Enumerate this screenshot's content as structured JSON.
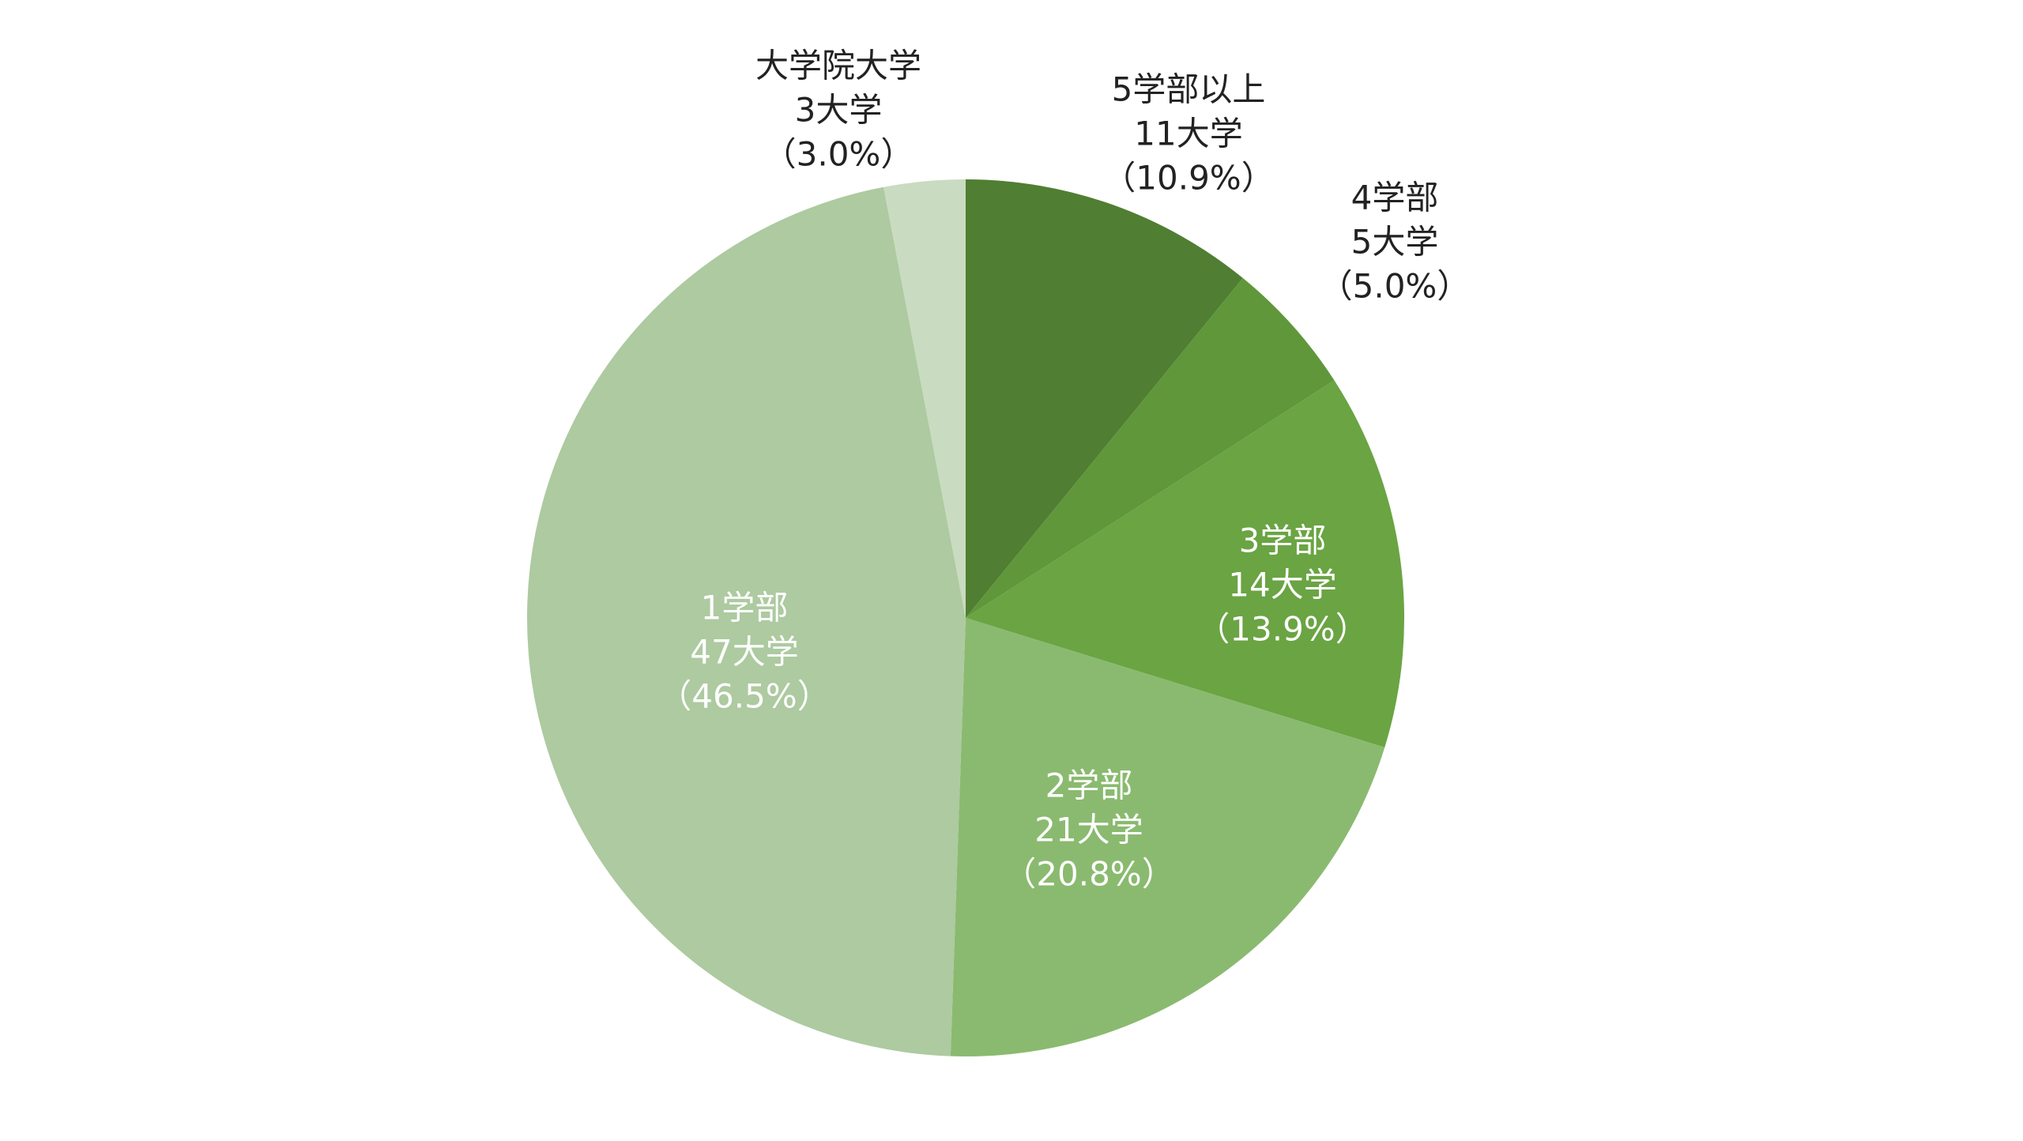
{
  "chart_data": {
    "type": "pie",
    "categories": [
      "5学部以上",
      "4学部",
      "3学部",
      "2学部",
      "1学部",
      "大学院大学"
    ],
    "counts": [
      11,
      5,
      14,
      21,
      47,
      3
    ],
    "count_labels": [
      "11大学",
      "5大学",
      "14大学",
      "21大学",
      "47大学",
      "3大学"
    ],
    "values": [
      10.9,
      5.0,
      13.9,
      20.8,
      46.5,
      3.0
    ],
    "value_labels": [
      "（10.9%）",
      "（5.0%）",
      "（13.9%）",
      "（20.8%）",
      "（46.5%）",
      "（3.0%）"
    ],
    "colors": [
      "#507e32",
      "#5f973a",
      "#6aa443",
      "#8aba6f",
      "#adcaa0",
      "#c9dbc0"
    ]
  }
}
